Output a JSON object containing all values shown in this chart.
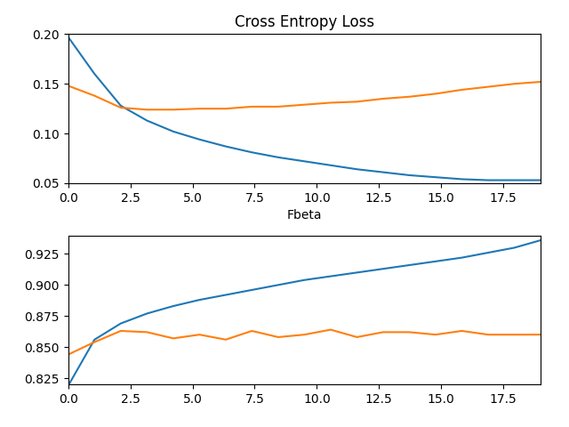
{
  "title": "Cross Entropy Loss",
  "xlabel_top": "Fbeta",
  "n_epochs": 19,
  "loss_train": [
    0.197,
    0.16,
    0.128,
    0.113,
    0.102,
    0.094,
    0.087,
    0.081,
    0.076,
    0.072,
    0.068,
    0.064,
    0.061,
    0.058,
    0.056,
    0.054,
    0.053,
    0.053,
    0.053
  ],
  "loss_test": [
    0.148,
    0.138,
    0.126,
    0.124,
    0.124,
    0.125,
    0.125,
    0.127,
    0.127,
    0.129,
    0.131,
    0.132,
    0.135,
    0.137,
    0.14,
    0.144,
    0.147,
    0.15,
    0.152
  ],
  "fbeta_train": [
    0.819,
    0.856,
    0.869,
    0.877,
    0.883,
    0.888,
    0.892,
    0.896,
    0.9,
    0.904,
    0.907,
    0.91,
    0.913,
    0.916,
    0.919,
    0.922,
    0.926,
    0.93,
    0.936
  ],
  "fbeta_test": [
    0.844,
    0.854,
    0.863,
    0.862,
    0.857,
    0.86,
    0.856,
    0.863,
    0.858,
    0.86,
    0.864,
    0.858,
    0.862,
    0.862,
    0.86,
    0.863,
    0.86,
    0.86,
    0.86
  ],
  "color_train": "#1f77b4",
  "color_test": "#ff7f0e",
  "loss_ylim": [
    0.05,
    0.2
  ],
  "fbeta_ylim": [
    0.82,
    0.94
  ],
  "xlim": [
    0.0,
    19.0
  ],
  "xticks": [
    0.0,
    2.5,
    5.0,
    7.5,
    10.0,
    12.5,
    15.0,
    17.5
  ],
  "loss_yticks": [
    0.05,
    0.1,
    0.15,
    0.2
  ],
  "fbeta_yticks": [
    0.825,
    0.85,
    0.875,
    0.9,
    0.925
  ],
  "linewidth": 1.5
}
